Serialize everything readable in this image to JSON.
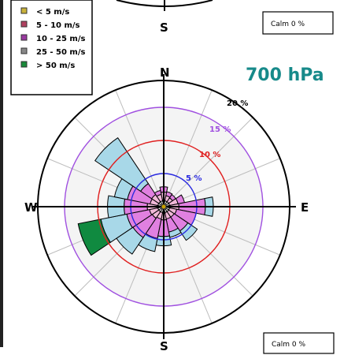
{
  "top_panel": {
    "south_label": "S",
    "calm_label": "Calm 0 %"
  },
  "legend": {
    "items": [
      {
        "label": "< 5 m/s",
        "color": "#c9b23a"
      },
      {
        "label": "5 - 10 m/s",
        "color": "#b04060"
      },
      {
        "label": "10 - 25 m/s",
        "color": "#9a3aa0"
      },
      {
        "label": "25 - 50 m/s",
        "color": "#888888"
      },
      {
        "label": "> 50 m/s",
        "color": "#1a8a3a"
      }
    ]
  },
  "chart_data": {
    "type": "windrose",
    "title": "700 hPa",
    "directions": [
      "N",
      "NNE",
      "NE",
      "ENE",
      "E",
      "ESE",
      "SE",
      "SSE",
      "S",
      "SSW",
      "SW",
      "WSW",
      "W",
      "WNW",
      "NW",
      "NNW"
    ],
    "compass_labels": {
      "N": "N",
      "E": "E",
      "S": "S",
      "W": "W"
    },
    "ring_labels": [
      "5 %",
      "10 %",
      "15 %",
      "20 %"
    ],
    "ring_values": [
      5,
      10,
      15,
      20
    ],
    "ring_colors": [
      "#2a2ae0",
      "#e02020",
      "#a050e0",
      "#000000"
    ],
    "calm_label": "Calm 0 %",
    "series": [
      {
        "name": "< 5 m/s",
        "color": "#ffffff",
        "values": [
          1.0,
          0.9,
          0.9,
          0.9,
          1.0,
          0.9,
          0.9,
          0.9,
          1.0,
          0.9,
          0.9,
          0.9,
          1.0,
          0.9,
          0.9,
          0.9
        ]
      },
      {
        "name": "5 - 10 m/s",
        "color": "#f0b8d8",
        "values": [
          1.2,
          0.8,
          0.7,
          1.3,
          1.3,
          1.1,
          1.0,
          1.0,
          1.0,
          1.0,
          1.2,
          1.3,
          1.5,
          1.2,
          1.3,
          1.0
        ]
      },
      {
        "name": "10 - 25 m/s",
        "color": "#e080e0",
        "values": [
          0.8,
          0.6,
          0.6,
          1.0,
          4.0,
          3.0,
          2.5,
          2.0,
          2.5,
          3.0,
          3.5,
          3.5,
          3.5,
          3.5,
          2.0,
          0.6
        ]
      },
      {
        "name": "25 - 50 m/s",
        "color": "#a8d8e8",
        "values": [
          0.0,
          0.0,
          0.0,
          0.0,
          1.2,
          0.0,
          1.7,
          0.8,
          1.4,
          2.0,
          3.0,
          4.0,
          2.5,
          2.0,
          8.3,
          0.0
        ]
      },
      {
        "name": "> 50 m/s",
        "color": "#108a40",
        "values": [
          0.0,
          0.0,
          0.0,
          0.0,
          0.0,
          0.0,
          0.0,
          0.0,
          0.0,
          0.0,
          0.0,
          3.5,
          0.0,
          0.0,
          0.0,
          0.0
        ]
      }
    ]
  }
}
